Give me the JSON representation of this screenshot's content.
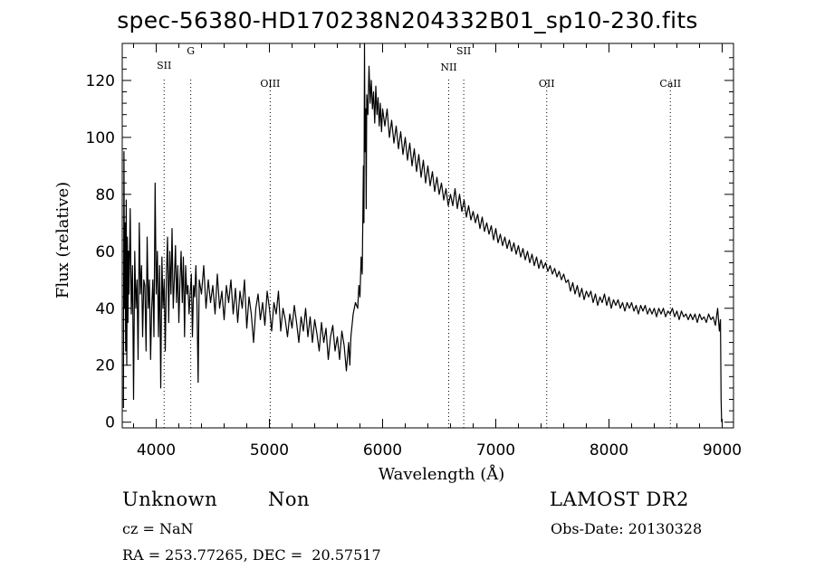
{
  "chart_data": {
    "type": "line",
    "title": "spec-56380-HD170238N204332B01_sp10-230.fits",
    "xlabel": "Wavelength (Å)",
    "ylabel": "Flux (relative)",
    "xlim": [
      3700,
      9100
    ],
    "ylim": [
      -2,
      133
    ],
    "x_ticks": [
      4000,
      5000,
      6000,
      7000,
      8000,
      9000
    ],
    "y_ticks": [
      0,
      20,
      40,
      60,
      80,
      100,
      120
    ],
    "grid": false,
    "lines": [
      {
        "label": "SII",
        "x": 4070
      },
      {
        "label": "G",
        "x": 4305
      },
      {
        "label": "OIII",
        "x": 5007
      },
      {
        "label": "NII",
        "x": 6584
      },
      {
        "label": "SII",
        "x": 6717
      },
      {
        "label": "OII",
        "x": 7450
      },
      {
        "label": "CaII",
        "x": 8542
      }
    ],
    "series": [
      {
        "points": [
          [
            3710,
            5
          ],
          [
            3715,
            95
          ],
          [
            3720,
            40
          ],
          [
            3725,
            70
          ],
          [
            3730,
            25
          ],
          [
            3735,
            78
          ],
          [
            3740,
            20
          ],
          [
            3745,
            65
          ],
          [
            3750,
            35
          ],
          [
            3755,
            60
          ],
          [
            3760,
            45
          ],
          [
            3770,
            75
          ],
          [
            3780,
            38
          ],
          [
            3790,
            55
          ],
          [
            3800,
            8
          ],
          [
            3810,
            60
          ],
          [
            3820,
            40
          ],
          [
            3830,
            50
          ],
          [
            3840,
            22
          ],
          [
            3850,
            70
          ],
          [
            3860,
            45
          ],
          [
            3870,
            55
          ],
          [
            3880,
            30
          ],
          [
            3890,
            50
          ],
          [
            3900,
            48
          ],
          [
            3910,
            25
          ],
          [
            3920,
            65
          ],
          [
            3930,
            40
          ],
          [
            3940,
            50
          ],
          [
            3950,
            22
          ],
          [
            3960,
            40
          ],
          [
            3970,
            50
          ],
          [
            3980,
            30
          ],
          [
            3990,
            84
          ],
          [
            4000,
            45
          ],
          [
            4010,
            60
          ],
          [
            4020,
            30
          ],
          [
            4030,
            55
          ],
          [
            4040,
            12
          ],
          [
            4050,
            58
          ],
          [
            4060,
            40
          ],
          [
            4070,
            50
          ],
          [
            4080,
            25
          ],
          [
            4090,
            52
          ],
          [
            4100,
            65
          ],
          [
            4110,
            35
          ],
          [
            4120,
            60
          ],
          [
            4130,
            45
          ],
          [
            4140,
            68
          ],
          [
            4150,
            40
          ],
          [
            4160,
            50
          ],
          [
            4170,
            62
          ],
          [
            4180,
            42
          ],
          [
            4190,
            55
          ],
          [
            4200,
            35
          ],
          [
            4210,
            50
          ],
          [
            4220,
            60
          ],
          [
            4230,
            42
          ],
          [
            4240,
            58
          ],
          [
            4250,
            30
          ],
          [
            4260,
            55
          ],
          [
            4270,
            45
          ],
          [
            4280,
            48
          ],
          [
            4290,
            38
          ],
          [
            4300,
            45
          ],
          [
            4310,
            52
          ],
          [
            4320,
            30
          ],
          [
            4330,
            48
          ],
          [
            4340,
            44
          ],
          [
            4350,
            55
          ],
          [
            4360,
            42
          ],
          [
            4370,
            14
          ],
          [
            4380,
            50
          ],
          [
            4400,
            45
          ],
          [
            4420,
            55
          ],
          [
            4440,
            40
          ],
          [
            4460,
            50
          ],
          [
            4480,
            42
          ],
          [
            4500,
            48
          ],
          [
            4520,
            38
          ],
          [
            4540,
            52
          ],
          [
            4560,
            40
          ],
          [
            4580,
            46
          ],
          [
            4600,
            36
          ],
          [
            4620,
            48
          ],
          [
            4640,
            42
          ],
          [
            4660,
            50
          ],
          [
            4680,
            38
          ],
          [
            4700,
            47
          ],
          [
            4720,
            35
          ],
          [
            4740,
            46
          ],
          [
            4760,
            40
          ],
          [
            4780,
            50
          ],
          [
            4800,
            33
          ],
          [
            4820,
            44
          ],
          [
            4840,
            38
          ],
          [
            4860,
            28
          ],
          [
            4880,
            40
          ],
          [
            4900,
            45
          ],
          [
            4920,
            36
          ],
          [
            4940,
            42
          ],
          [
            4960,
            34
          ],
          [
            4980,
            46
          ],
          [
            5000,
            40
          ],
          [
            5020,
            32
          ],
          [
            5040,
            42
          ],
          [
            5060,
            38
          ],
          [
            5080,
            46
          ],
          [
            5100,
            32
          ],
          [
            5120,
            40
          ],
          [
            5140,
            36
          ],
          [
            5160,
            30
          ],
          [
            5180,
            38
          ],
          [
            5200,
            33
          ],
          [
            5220,
            41
          ],
          [
            5240,
            35
          ],
          [
            5260,
            28
          ],
          [
            5280,
            37
          ],
          [
            5300,
            32
          ],
          [
            5320,
            40
          ],
          [
            5340,
            30
          ],
          [
            5360,
            37
          ],
          [
            5380,
            28
          ],
          [
            5400,
            36
          ],
          [
            5420,
            31
          ],
          [
            5440,
            25
          ],
          [
            5460,
            35
          ],
          [
            5480,
            28
          ],
          [
            5500,
            33
          ],
          [
            5520,
            22
          ],
          [
            5540,
            30
          ],
          [
            5560,
            34
          ],
          [
            5580,
            25
          ],
          [
            5600,
            30
          ],
          [
            5620,
            22
          ],
          [
            5640,
            32
          ],
          [
            5660,
            27
          ],
          [
            5680,
            18
          ],
          [
            5700,
            28
          ],
          [
            5710,
            20
          ],
          [
            5720,
            30
          ],
          [
            5740,
            38
          ],
          [
            5760,
            42
          ],
          [
            5780,
            40
          ],
          [
            5790,
            48
          ],
          [
            5800,
            44
          ],
          [
            5810,
            58
          ],
          [
            5820,
            52
          ],
          [
            5830,
            90
          ],
          [
            5835,
            70
          ],
          [
            5840,
            133
          ],
          [
            5845,
            95
          ],
          [
            5850,
            110
          ],
          [
            5855,
            75
          ],
          [
            5860,
            115
          ],
          [
            5870,
            108
          ],
          [
            5880,
            125
          ],
          [
            5890,
            112
          ],
          [
            5900,
            120
          ],
          [
            5910,
            110
          ],
          [
            5920,
            116
          ],
          [
            5930,
            105
          ],
          [
            5940,
            118
          ],
          [
            5950,
            108
          ],
          [
            5960,
            114
          ],
          [
            5970,
            104
          ],
          [
            5980,
            112
          ],
          [
            5990,
            102
          ],
          [
            6000,
            110
          ],
          [
            6020,
            104
          ],
          [
            6040,
            110
          ],
          [
            6060,
            100
          ],
          [
            6080,
            106
          ],
          [
            6100,
            98
          ],
          [
            6120,
            104
          ],
          [
            6140,
            96
          ],
          [
            6160,
            102
          ],
          [
            6180,
            94
          ],
          [
            6200,
            100
          ],
          [
            6220,
            92
          ],
          [
            6240,
            98
          ],
          [
            6260,
            90
          ],
          [
            6280,
            96
          ],
          [
            6300,
            88
          ],
          [
            6320,
            94
          ],
          [
            6340,
            86
          ],
          [
            6360,
            92
          ],
          [
            6380,
            84
          ],
          [
            6400,
            90
          ],
          [
            6420,
            83
          ],
          [
            6440,
            88
          ],
          [
            6460,
            81
          ],
          [
            6480,
            86
          ],
          [
            6500,
            80
          ],
          [
            6520,
            84
          ],
          [
            6540,
            78
          ],
          [
            6560,
            82
          ],
          [
            6580,
            76
          ],
          [
            6600,
            80
          ],
          [
            6620,
            76
          ],
          [
            6640,
            82
          ],
          [
            6660,
            75
          ],
          [
            6680,
            80
          ],
          [
            6700,
            74
          ],
          [
            6720,
            78
          ],
          [
            6740,
            72
          ],
          [
            6760,
            76
          ],
          [
            6780,
            71
          ],
          [
            6800,
            74
          ],
          [
            6820,
            70
          ],
          [
            6840,
            73
          ],
          [
            6860,
            68
          ],
          [
            6880,
            72
          ],
          [
            6900,
            67
          ],
          [
            6920,
            70
          ],
          [
            6940,
            66
          ],
          [
            6960,
            69
          ],
          [
            6980,
            64
          ],
          [
            7000,
            68
          ],
          [
            7020,
            63
          ],
          [
            7040,
            66
          ],
          [
            7060,
            62
          ],
          [
            7080,
            65
          ],
          [
            7100,
            61
          ],
          [
            7120,
            64
          ],
          [
            7140,
            60
          ],
          [
            7160,
            63
          ],
          [
            7180,
            59
          ],
          [
            7200,
            62
          ],
          [
            7220,
            58
          ],
          [
            7240,
            61
          ],
          [
            7260,
            57
          ],
          [
            7280,
            60
          ],
          [
            7300,
            56
          ],
          [
            7320,
            59
          ],
          [
            7340,
            55
          ],
          [
            7360,
            58
          ],
          [
            7380,
            54
          ],
          [
            7400,
            57
          ],
          [
            7420,
            54
          ],
          [
            7440,
            56
          ],
          [
            7460,
            53
          ],
          [
            7480,
            55
          ],
          [
            7500,
            52
          ],
          [
            7520,
            54
          ],
          [
            7540,
            51
          ],
          [
            7560,
            53
          ],
          [
            7580,
            50
          ],
          [
            7600,
            52
          ],
          [
            7620,
            49
          ],
          [
            7640,
            50
          ],
          [
            7660,
            46
          ],
          [
            7680,
            49
          ],
          [
            7700,
            45
          ],
          [
            7720,
            48
          ],
          [
            7740,
            44
          ],
          [
            7760,
            47
          ],
          [
            7780,
            43
          ],
          [
            7800,
            46
          ],
          [
            7820,
            44
          ],
          [
            7840,
            46
          ],
          [
            7860,
            42
          ],
          [
            7880,
            45
          ],
          [
            7900,
            41
          ],
          [
            7920,
            44
          ],
          [
            7940,
            42
          ],
          [
            7960,
            45
          ],
          [
            7980,
            41
          ],
          [
            8000,
            44
          ],
          [
            8020,
            40
          ],
          [
            8040,
            43
          ],
          [
            8060,
            41
          ],
          [
            8080,
            43
          ],
          [
            8100,
            40
          ],
          [
            8120,
            42
          ],
          [
            8140,
            39
          ],
          [
            8160,
            42
          ],
          [
            8180,
            40
          ],
          [
            8200,
            42
          ],
          [
            8220,
            39
          ],
          [
            8240,
            41
          ],
          [
            8260,
            38
          ],
          [
            8280,
            41
          ],
          [
            8300,
            39
          ],
          [
            8320,
            41
          ],
          [
            8340,
            38
          ],
          [
            8360,
            40
          ],
          [
            8380,
            38
          ],
          [
            8400,
            40
          ],
          [
            8420,
            37
          ],
          [
            8440,
            40
          ],
          [
            8460,
            38
          ],
          [
            8480,
            40
          ],
          [
            8500,
            37
          ],
          [
            8520,
            39
          ],
          [
            8540,
            38
          ],
          [
            8560,
            40
          ],
          [
            8580,
            37
          ],
          [
            8600,
            39
          ],
          [
            8620,
            36
          ],
          [
            8640,
            39
          ],
          [
            8660,
            37
          ],
          [
            8680,
            38
          ],
          [
            8700,
            36
          ],
          [
            8720,
            38
          ],
          [
            8740,
            36
          ],
          [
            8760,
            38
          ],
          [
            8780,
            35
          ],
          [
            8800,
            38
          ],
          [
            8820,
            36
          ],
          [
            8840,
            37
          ],
          [
            8860,
            35
          ],
          [
            8880,
            38
          ],
          [
            8900,
            36
          ],
          [
            8920,
            37
          ],
          [
            8940,
            34
          ],
          [
            8960,
            40
          ],
          [
            8975,
            32
          ],
          [
            8985,
            36
          ],
          [
            8990,
            8
          ],
          [
            8995,
            0
          ]
        ]
      }
    ]
  },
  "info": {
    "class": "Unknown",
    "subclass": "Non",
    "survey": "LAMOST DR2",
    "cz": "cz = NaN",
    "obs_date": "Obs-Date: 20130328",
    "coords": "RA = 253.77265, DEC =  20.57517"
  }
}
